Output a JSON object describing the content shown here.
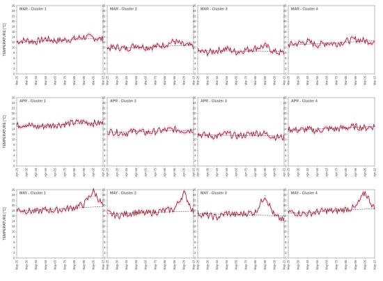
{
  "figure": {
    "ylabel": "TEMPERATURE [°C]",
    "colors": {
      "line": "#8b1a14",
      "trend": "#333333",
      "band": "#f7b8e6",
      "frame": "#8a8a8a"
    }
  },
  "chart_data": [
    {
      "type": "line",
      "title": "MAR - Cluster 1",
      "ylim": [
        0,
        26
      ],
      "yticks": [
        0,
        2,
        4,
        6,
        8,
        10,
        12,
        14,
        16,
        18,
        20,
        22,
        24,
        26
      ],
      "xticks": [
        "Mar-25",
        "Mar-35",
        "Mar-45",
        "Mar-55",
        "Mar-65",
        "Mar-75",
        "Mar-85",
        "Mar-95",
        "Mar-05",
        "Mar-15"
      ],
      "series": [
        {
          "x": [
            1925,
            1935,
            1945,
            1955,
            1965,
            1975,
            1985,
            1995,
            2005,
            2015
          ],
          "values": [
            12.3,
            12.8,
            12.2,
            13.4,
            12.6,
            12.9,
            13.3,
            14.1,
            13.8,
            13.1
          ]
        }
      ],
      "trend": [
        12.0,
        13.6
      ]
    },
    {
      "type": "line",
      "title": "MAR - Cluster 2",
      "ylim": [
        0,
        26
      ],
      "yticks": [
        0,
        2,
        4,
        6,
        8,
        10,
        12,
        14,
        16,
        18,
        20,
        22,
        24,
        26
      ],
      "xticks": [
        "Mar-25",
        "Mar-35",
        "Mar-45",
        "Mar-55",
        "Mar-65",
        "Mar-75",
        "Mar-85",
        "Mar-95",
        "Mar-05",
        "Mar-15"
      ],
      "series": [
        {
          "x": [
            1925,
            1935,
            1945,
            1955,
            1965,
            1975,
            1985,
            1995,
            2005,
            2015
          ],
          "values": [
            9.8,
            10.2,
            9.6,
            11.0,
            10.1,
            10.4,
            11.1,
            12.4,
            10.9,
            10.5
          ]
        }
      ],
      "trend": [
        9.6,
        11.0
      ]
    },
    {
      "type": "line",
      "title": "MAR - Cluster 3",
      "ylim": [
        0,
        26
      ],
      "yticks": [
        0,
        2,
        4,
        6,
        8,
        10,
        12,
        14,
        16,
        18,
        20,
        22,
        24,
        26
      ],
      "xticks": [
        "Mar-25",
        "Mar-35",
        "Mar-45",
        "Mar-55",
        "Mar-65",
        "Mar-75",
        "Mar-85",
        "Mar-95",
        "Mar-05",
        "Mar-15"
      ],
      "series": [
        {
          "x": [
            1925,
            1935,
            1945,
            1955,
            1965,
            1975,
            1985,
            1995,
            2005,
            2015
          ],
          "values": [
            8.6,
            8.1,
            8.9,
            9.6,
            8.3,
            9.2,
            9.8,
            10.7,
            8.4,
            7.9
          ]
        }
      ],
      "trend": [
        8.8,
        8.6
      ]
    },
    {
      "type": "line",
      "title": "MAR - Cluster 4",
      "ylim": [
        0,
        26
      ],
      "yticks": [
        0,
        2,
        4,
        6,
        8,
        10,
        12,
        14,
        16,
        18,
        20,
        22,
        24,
        26
      ],
      "xticks": [
        "Mar-25",
        "Mar-35",
        "Mar-45",
        "Mar-55",
        "Mar-65",
        "Mar-75",
        "Mar-85",
        "Mar-95",
        "Mar-05",
        "Mar-15"
      ],
      "series": [
        {
          "x": [
            1925,
            1935,
            1945,
            1955,
            1965,
            1975,
            1985,
            1995,
            2005,
            2015
          ],
          "values": [
            11.1,
            11.6,
            12.3,
            11.0,
            11.8,
            11.5,
            12.4,
            13.2,
            12.6,
            12.2
          ]
        }
      ],
      "trend": [
        11.0,
        12.6
      ]
    },
    {
      "type": "line",
      "title": "APR - Cluster 1",
      "ylim": [
        0,
        26
      ],
      "yticks": [
        0,
        2,
        4,
        6,
        8,
        10,
        12,
        14,
        16,
        18,
        20,
        22,
        24,
        26
      ],
      "xticks": [
        "Apr-25",
        "Apr-35",
        "Apr-45",
        "Apr-55",
        "Apr-65",
        "Apr-75",
        "Apr-85",
        "Apr-95",
        "Apr-05",
        "Apr-15"
      ],
      "series": [
        {
          "x": [
            1925,
            1935,
            1945,
            1955,
            1965,
            1975,
            1985,
            1995,
            2005,
            2015
          ],
          "values": [
            15.4,
            15.9,
            14.8,
            15.2,
            15.6,
            15.9,
            16.4,
            16.8,
            16.2,
            16.3
          ]
        }
      ],
      "trend": [
        15.0,
        16.5
      ]
    },
    {
      "type": "line",
      "title": "APR - Cluster 2",
      "ylim": [
        0,
        26
      ],
      "yticks": [
        0,
        2,
        4,
        6,
        8,
        10,
        12,
        14,
        16,
        18,
        20,
        22,
        24,
        26
      ],
      "xticks": [
        "Apr-25",
        "Apr-35",
        "Apr-45",
        "Apr-55",
        "Apr-65",
        "Apr-75",
        "Apr-85",
        "Apr-95",
        "Apr-05",
        "Apr-15"
      ],
      "series": [
        {
          "x": [
            1925,
            1935,
            1945,
            1955,
            1965,
            1975,
            1985,
            1995,
            2005,
            2015
          ],
          "values": [
            13.2,
            12.8,
            12.5,
            13.4,
            12.6,
            13.1,
            13.6,
            13.9,
            13.4,
            13.8
          ]
        }
      ],
      "trend": [
        12.8,
        13.6
      ]
    },
    {
      "type": "line",
      "title": "APR - Cluster 3",
      "ylim": [
        0,
        26
      ],
      "yticks": [
        0,
        2,
        4,
        6,
        8,
        10,
        12,
        14,
        16,
        18,
        20,
        22,
        24,
        26
      ],
      "xticks": [
        "Apr-25",
        "Apr-35",
        "Apr-45",
        "Apr-55",
        "Apr-65",
        "Apr-75",
        "Apr-85",
        "Apr-95",
        "Apr-05",
        "Apr-15"
      ],
      "series": [
        {
          "x": [
            1925,
            1935,
            1945,
            1955,
            1965,
            1975,
            1985,
            1995,
            2005,
            2015
          ],
          "values": [
            12.1,
            11.6,
            11.2,
            12.3,
            11.4,
            11.8,
            12.6,
            12.3,
            11.1,
            10.8
          ]
        }
      ],
      "trend": [
        11.8,
        11.4
      ]
    },
    {
      "type": "line",
      "title": "APR - Cluster 4",
      "ylim": [
        0,
        26
      ],
      "yticks": [
        0,
        2,
        4,
        6,
        8,
        10,
        12,
        14,
        16,
        18,
        20,
        22,
        24,
        26
      ],
      "xticks": [
        "Apr-25",
        "Apr-35",
        "Apr-45",
        "Apr-55",
        "Apr-65",
        "Apr-75",
        "Apr-85",
        "Apr-95",
        "Apr-05",
        "Apr-15"
      ],
      "series": [
        {
          "x": [
            1925,
            1935,
            1945,
            1955,
            1965,
            1975,
            1985,
            1995,
            2005,
            2015
          ],
          "values": [
            14.1,
            13.6,
            13.9,
            13.4,
            14.2,
            14.0,
            14.6,
            14.9,
            14.5,
            15.1
          ]
        }
      ],
      "trend": [
        13.6,
        15.0
      ]
    },
    {
      "type": "line",
      "title": "MAY - Cluster 1",
      "ylim": [
        0,
        26
      ],
      "yticks": [
        0,
        2,
        4,
        6,
        8,
        10,
        12,
        14,
        16,
        18,
        20,
        22,
        24,
        26
      ],
      "xticks": [
        "May-25",
        "May-35",
        "May-45",
        "May-55",
        "May-65",
        "May-75",
        "May-85",
        "May-95",
        "May-05",
        "May-15"
      ],
      "series": [
        {
          "x": [
            1925,
            1935,
            1945,
            1955,
            1965,
            1975,
            1985,
            1995,
            2005,
            2015
          ],
          "values": [
            18.4,
            18.0,
            17.6,
            18.3,
            18.1,
            18.6,
            19.2,
            20.4,
            25.5,
            19.8
          ]
        }
      ],
      "trend": [
        17.8,
        19.6
      ]
    },
    {
      "type": "line",
      "title": "MAY - Cluster 2",
      "ylim": [
        0,
        26
      ],
      "yticks": [
        0,
        2,
        4,
        6,
        8,
        10,
        12,
        14,
        16,
        18,
        20,
        22,
        24,
        26
      ],
      "xticks": [
        "May-25",
        "May-35",
        "May-45",
        "May-55",
        "May-65",
        "May-75",
        "May-85",
        "May-95",
        "May-05",
        "May-15"
      ],
      "series": [
        {
          "x": [
            1925,
            1935,
            1945,
            1955,
            1965,
            1975,
            1985,
            1995,
            2005,
            2015
          ],
          "values": [
            17.2,
            16.1,
            16.8,
            17.4,
            16.9,
            17.5,
            18.0,
            18.6,
            24.8,
            17.4
          ]
        }
      ],
      "trend": [
        16.8,
        17.8
      ]
    },
    {
      "type": "line",
      "title": "MAY - Cluster 3",
      "ylim": [
        0,
        26
      ],
      "yticks": [
        0,
        2,
        4,
        6,
        8,
        10,
        12,
        14,
        16,
        18,
        20,
        22,
        24,
        26
      ],
      "xticks": [
        "May-25",
        "May-35",
        "May-45",
        "May-55",
        "May-65",
        "May-75",
        "May-85",
        "May-95",
        "May-05",
        "May-15"
      ],
      "series": [
        {
          "x": [
            1925,
            1935,
            1945,
            1955,
            1965,
            1975,
            1985,
            1995,
            2005,
            2015
          ],
          "values": [
            17.0,
            16.2,
            15.4,
            17.1,
            16.4,
            17.0,
            17.4,
            23.8,
            16.0,
            14.2
          ]
        }
      ],
      "trend": [
        16.9,
        16.0
      ]
    },
    {
      "type": "line",
      "title": "MAY - Cluster 4",
      "ylim": [
        0,
        26
      ],
      "yticks": [
        0,
        2,
        4,
        6,
        8,
        10,
        12,
        14,
        16,
        18,
        20,
        22,
        24,
        26
      ],
      "xticks": [
        "May-25",
        "May-35",
        "May-45",
        "May-55",
        "May-65",
        "May-75",
        "May-85",
        "May-95",
        "May-05",
        "May-15"
      ],
      "series": [
        {
          "x": [
            1925,
            1935,
            1945,
            1955,
            1965,
            1975,
            1985,
            1995,
            2005,
            2015
          ],
          "values": [
            17.6,
            17.1,
            16.8,
            17.5,
            18.0,
            17.8,
            18.6,
            19.1,
            25.0,
            18.6
          ]
        }
      ],
      "trend": [
        17.0,
        18.8
      ]
    }
  ]
}
